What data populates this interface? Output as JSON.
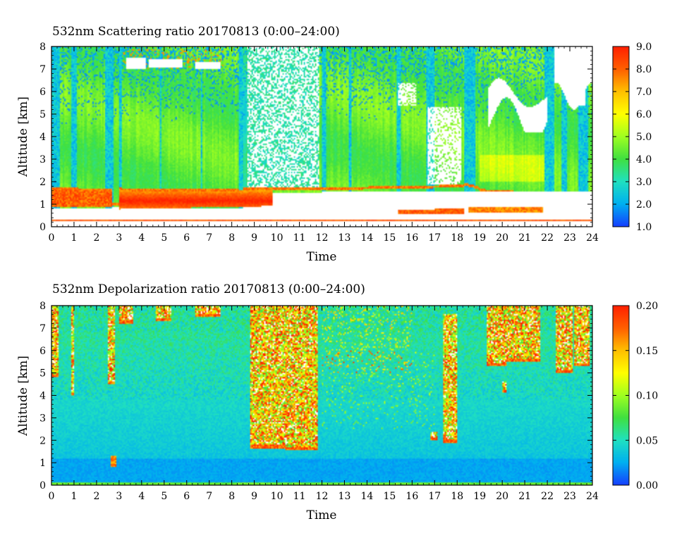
{
  "chart_data": [
    {
      "type": "heatmap",
      "title": "532nm Scattering ratio  20170813 (0:00–24:00)",
      "xlabel": "Time",
      "ylabel": "Altitude [km]",
      "xlim": [
        0,
        24
      ],
      "ylim": [
        0,
        8
      ],
      "x_ticks": [
        "0",
        "1",
        "2",
        "3",
        "4",
        "5",
        "6",
        "7",
        "8",
        "9",
        "10",
        "11",
        "12",
        "13",
        "14",
        "15",
        "16",
        "17",
        "18",
        "19",
        "20",
        "21",
        "22",
        "23",
        "24"
      ],
      "y_ticks": [
        "0",
        "1",
        "2",
        "3",
        "4",
        "5",
        "6",
        "7",
        "8"
      ],
      "colorbar": {
        "range": [
          1.0,
          9.0
        ],
        "ticks": [
          "1.0",
          "2.0",
          "3.0",
          "4.0",
          "5.0",
          "6.0",
          "7.0",
          "8.0",
          "9.0"
        ],
        "colors": [
          "#1540ff",
          "#00b0f0",
          "#20e0c0",
          "#40e040",
          "#a0ff20",
          "#ffff00",
          "#ffc000",
          "#ff6000",
          "#ff2000"
        ]
      },
      "features": {
        "background_level": 4.3,
        "boundary_layer_top_km": 1.5,
        "near_surface_layer_km": 0.3
      }
    },
    {
      "type": "heatmap",
      "title": "532nm Depolarization ratio  20170813 (0:00–24:00)",
      "xlabel": "Time",
      "ylabel": "Altitude [km]",
      "xlim": [
        0,
        24
      ],
      "ylim": [
        0,
        8
      ],
      "x_ticks": [
        "0",
        "1",
        "2",
        "3",
        "4",
        "5",
        "6",
        "7",
        "8",
        "9",
        "10",
        "11",
        "12",
        "13",
        "14",
        "15",
        "16",
        "17",
        "18",
        "19",
        "20",
        "21",
        "22",
        "23",
        "24"
      ],
      "y_ticks": [
        "0",
        "1",
        "2",
        "3",
        "4",
        "5",
        "6",
        "7",
        "8"
      ],
      "colorbar": {
        "range": [
          0.0,
          0.2
        ],
        "ticks": [
          "0.00",
          "0.05",
          "0.10",
          "0.15",
          "0.20"
        ],
        "colors": [
          "#1540ff",
          "#00b0f0",
          "#20e0c0",
          "#40e040",
          "#a0ff20",
          "#ffff00",
          "#ffc000",
          "#ff6000",
          "#ff2000"
        ]
      },
      "features": {
        "background_level": 0.02,
        "cloud_periods_hours": [
          [
            8.8,
            11.8
          ],
          [
            17.4,
            18.0
          ],
          [
            19.3,
            21.7
          ],
          [
            22.4,
            23.9
          ]
        ]
      }
    }
  ]
}
